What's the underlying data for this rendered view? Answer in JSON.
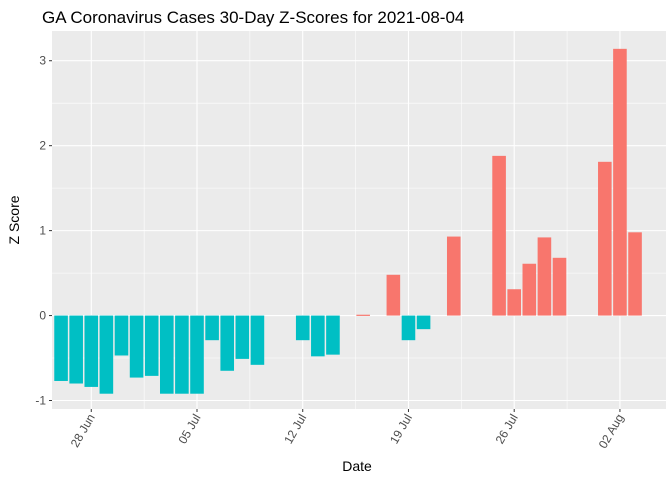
{
  "chart_data": {
    "type": "bar",
    "title": "GA Coronavirus Cases 30-Day Z-Scores for 2021-08-04",
    "xlabel": "Date",
    "ylabel": "Z Score",
    "ylim": [
      -1.1,
      3.35
    ],
    "yticks": [
      -1,
      0,
      1,
      2,
      3
    ],
    "x_dates": [
      "2021-06-26",
      "2021-06-27",
      "2021-06-28",
      "2021-06-29",
      "2021-06-30",
      "2021-07-01",
      "2021-07-02",
      "2021-07-03",
      "2021-07-04",
      "2021-07-05",
      "2021-07-06",
      "2021-07-07",
      "2021-07-08",
      "2021-07-09",
      "2021-07-10",
      "2021-07-11",
      "2021-07-12",
      "2021-07-13",
      "2021-07-14",
      "2021-07-15",
      "2021-07-16",
      "2021-07-17",
      "2021-07-18",
      "2021-07-19",
      "2021-07-20",
      "2021-07-21",
      "2021-07-22",
      "2021-07-23",
      "2021-07-24",
      "2021-07-25",
      "2021-07-26",
      "2021-07-27",
      "2021-07-28",
      "2021-07-29",
      "2021-07-30",
      "2021-07-31",
      "2021-08-01",
      "2021-08-02",
      "2021-08-03",
      "2021-08-04"
    ],
    "values": [
      -0.77,
      -0.8,
      -0.84,
      -0.92,
      -0.47,
      -0.73,
      -0.71,
      -0.92,
      -0.92,
      -0.92,
      -0.29,
      -0.65,
      -0.51,
      -0.58,
      null,
      null,
      -0.29,
      -0.48,
      -0.46,
      null,
      0.01,
      null,
      0.48,
      -0.29,
      -0.16,
      null,
      0.93,
      null,
      null,
      1.88,
      0.31,
      0.61,
      0.92,
      0.68,
      null,
      null,
      1.81,
      3.14,
      0.98,
      null
    ],
    "xticks": [
      {
        "date": "2021-06-28",
        "label": "28 Jun"
      },
      {
        "date": "2021-07-05",
        "label": "05 Jul"
      },
      {
        "date": "2021-07-12",
        "label": "12 Jul"
      },
      {
        "date": "2021-07-19",
        "label": "19 Jul"
      },
      {
        "date": "2021-07-26",
        "label": "26 Jul"
      },
      {
        "date": "2021-08-02",
        "label": "02 Aug"
      }
    ],
    "colors": {
      "positive": "#F8766D",
      "negative": "#00BFC4",
      "panel": "#EBEBEB",
      "grid": "#FFFFFF"
    },
    "grid": true,
    "legend": "none"
  }
}
